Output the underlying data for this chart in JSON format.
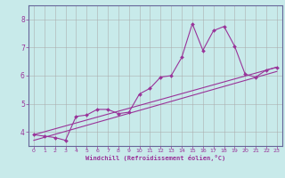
{
  "xlabel": "Windchill (Refroidissement éolien,°C)",
  "bg_color": "#c8eaea",
  "line_color": "#993399",
  "grid_color": "#aaaaaa",
  "border_color": "#666699",
  "xlim": [
    -0.5,
    23.5
  ],
  "ylim": [
    3.5,
    8.5
  ],
  "xticks": [
    0,
    1,
    2,
    3,
    4,
    5,
    6,
    7,
    8,
    9,
    10,
    11,
    12,
    13,
    14,
    15,
    16,
    17,
    18,
    19,
    20,
    21,
    22,
    23
  ],
  "yticks": [
    4,
    5,
    6,
    7,
    8
  ],
  "jagged_x": [
    0,
    1,
    2,
    3,
    4,
    5,
    6,
    7,
    8,
    9,
    10,
    11,
    12,
    13,
    14,
    15,
    16,
    17,
    18,
    19,
    20,
    21,
    22,
    23
  ],
  "jagged_y": [
    3.9,
    3.85,
    3.8,
    3.7,
    4.55,
    4.6,
    4.8,
    4.8,
    4.65,
    4.7,
    5.35,
    5.55,
    5.95,
    6.0,
    6.65,
    7.85,
    6.9,
    7.6,
    7.75,
    7.05,
    6.05,
    5.95,
    6.2,
    6.3
  ],
  "line2_x": [
    0,
    23
  ],
  "line2_y": [
    3.9,
    6.3
  ],
  "line3_x": [
    0,
    23
  ],
  "line3_y": [
    3.7,
    6.15
  ]
}
